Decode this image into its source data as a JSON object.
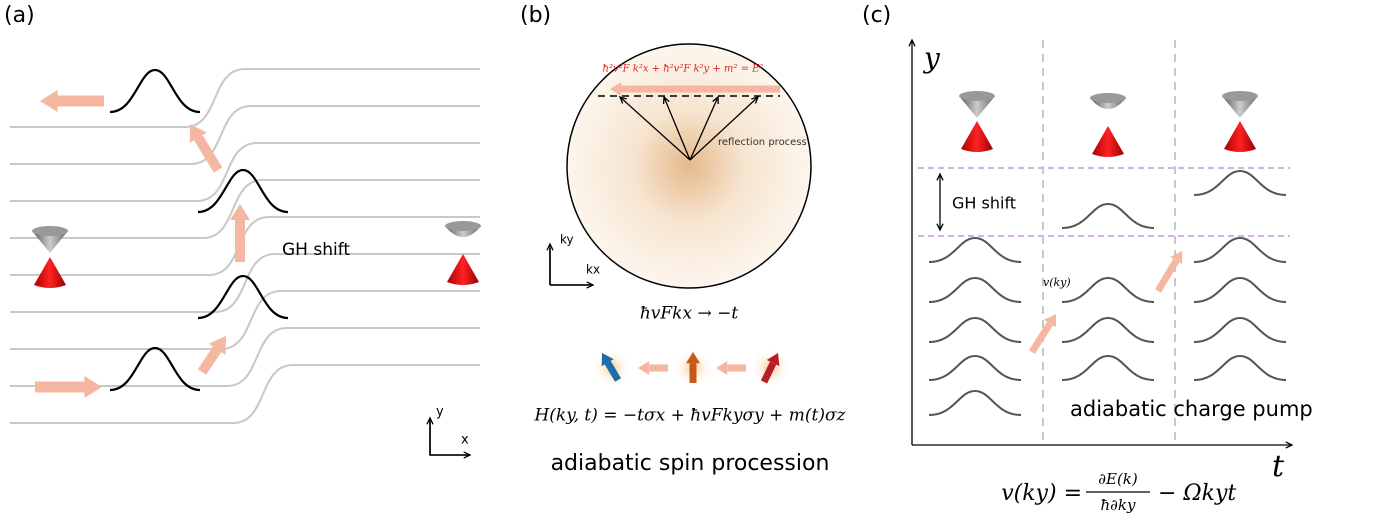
{
  "panel_a": {
    "label": "(a)",
    "gh_shift": "GH shift",
    "axis_y": "y",
    "axis_x": "x"
  },
  "panel_b": {
    "label": "(b)",
    "dispersion": "ħ²v²F k²x + ħ²v²F k²y + m² = E²",
    "reflection": "reflection process",
    "axis_ky": "ky",
    "axis_kx": "kx",
    "mapping": "ħvFkx → −t",
    "hamiltonian": "H(ky, t) = −tσx + ħvFkyσy + m(t)σz",
    "caption": "adiabatic spin procession"
  },
  "panel_c": {
    "label": "(c)",
    "axis_y": "y",
    "axis_t": "t",
    "gh_shift": "GH shift",
    "velocity": "v(ky)",
    "caption": "adiabatic charge pump",
    "formula": {
      "lhs": "v(ky) =",
      "numerator": "∂E(k)",
      "denominator": "ħ∂ky",
      "rhs": "− Ωkyt"
    }
  }
}
